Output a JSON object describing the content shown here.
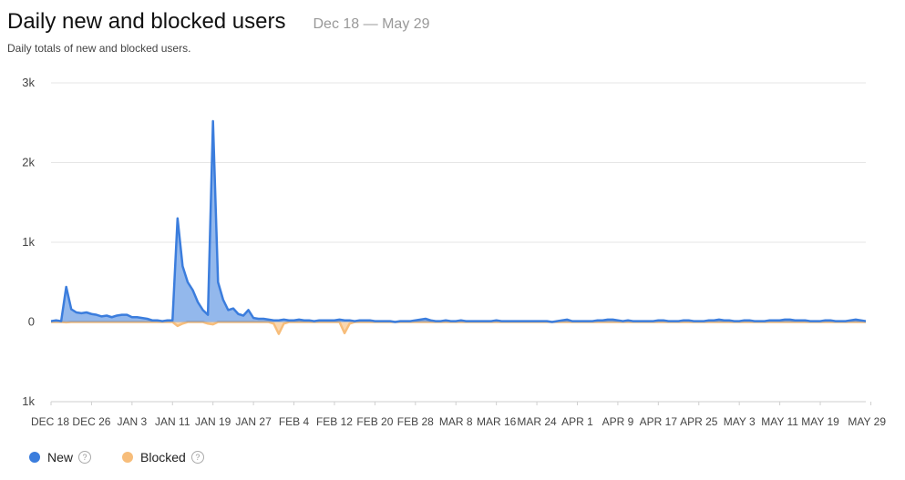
{
  "header": {
    "title": "Daily new and blocked users",
    "date_range": "Dec 18 — May 29",
    "subtitle": "Daily totals of new and blocked users."
  },
  "legend": [
    {
      "label": "New",
      "color": "#3b7ddd",
      "help_icon": "question-circle-icon",
      "help_glyph": "?"
    },
    {
      "label": "Blocked",
      "color": "#f7bd7a",
      "help_icon": "question-circle-icon",
      "help_glyph": "?"
    }
  ],
  "chart_data": {
    "type": "area",
    "y_ticks": [
      {
        "value": 3000,
        "label": "3k"
      },
      {
        "value": 2000,
        "label": "2k"
      },
      {
        "value": 1000,
        "label": "1k"
      },
      {
        "value": 0,
        "label": "0"
      },
      {
        "value": -1000,
        "label": "1k"
      }
    ],
    "ylim": [
      -1000,
      3000
    ],
    "x_ticks": [
      {
        "day": 0,
        "label": "DEC 18"
      },
      {
        "day": 8,
        "label": "DEC 26"
      },
      {
        "day": 16,
        "label": "JAN 3"
      },
      {
        "day": 24,
        "label": "JAN 11"
      },
      {
        "day": 32,
        "label": "JAN 19"
      },
      {
        "day": 40,
        "label": "JAN 27"
      },
      {
        "day": 48,
        "label": "FEB 4"
      },
      {
        "day": 56,
        "label": "FEB 12"
      },
      {
        "day": 64,
        "label": "FEB 20"
      },
      {
        "day": 72,
        "label": "FEB 28"
      },
      {
        "day": 80,
        "label": "MAR 8"
      },
      {
        "day": 88,
        "label": "MAR 16"
      },
      {
        "day": 96,
        "label": "MAR 24"
      },
      {
        "day": 104,
        "label": "APR 1"
      },
      {
        "day": 112,
        "label": "APR 9"
      },
      {
        "day": 120,
        "label": "APR 17"
      },
      {
        "day": 128,
        "label": "APR 25"
      },
      {
        "day": 136,
        "label": "MAY 3"
      },
      {
        "day": 144,
        "label": "MAY 11"
      },
      {
        "day": 152,
        "label": "MAY 19"
      },
      {
        "day": 162,
        "label": "MAY 29"
      }
    ],
    "grid": true,
    "legend_position": "bottom-left",
    "series": [
      {
        "name": "New",
        "color": "#3b7ddd",
        "values": [
          10,
          20,
          10,
          440,
          160,
          120,
          110,
          120,
          100,
          90,
          70,
          80,
          60,
          80,
          90,
          90,
          60,
          60,
          50,
          40,
          20,
          20,
          10,
          20,
          20,
          1300,
          700,
          500,
          400,
          250,
          150,
          90,
          2520,
          500,
          280,
          150,
          170,
          100,
          80,
          150,
          50,
          40,
          40,
          30,
          20,
          20,
          30,
          20,
          20,
          30,
          20,
          20,
          10,
          20,
          20,
          20,
          20,
          30,
          20,
          20,
          10,
          20,
          20,
          20,
          10,
          10,
          10,
          10,
          0,
          10,
          10,
          10,
          20,
          30,
          40,
          20,
          10,
          10,
          20,
          10,
          10,
          20,
          10,
          10,
          10,
          10,
          10,
          10,
          20,
          10,
          10,
          10,
          10,
          10,
          10,
          10,
          10,
          10,
          10,
          0,
          10,
          20,
          30,
          10,
          10,
          10,
          10,
          10,
          20,
          20,
          30,
          30,
          20,
          10,
          20,
          10,
          10,
          10,
          10,
          10,
          20,
          20,
          10,
          10,
          10,
          20,
          20,
          10,
          10,
          10,
          20,
          20,
          30,
          20,
          20,
          10,
          10,
          20,
          20,
          10,
          10,
          10,
          20,
          20,
          20,
          30,
          30,
          20,
          20,
          20,
          10,
          10,
          10,
          20,
          20,
          10,
          10,
          10,
          20,
          30,
          20,
          10
        ]
      },
      {
        "name": "Blocked",
        "color": "#f7bd7a",
        "values": [
          0,
          0,
          0,
          -5,
          0,
          0,
          0,
          0,
          0,
          0,
          0,
          0,
          0,
          0,
          0,
          0,
          0,
          0,
          0,
          0,
          0,
          0,
          0,
          0,
          0,
          -50,
          -20,
          0,
          0,
          0,
          0,
          -20,
          -30,
          0,
          0,
          0,
          0,
          0,
          0,
          0,
          0,
          0,
          0,
          0,
          -20,
          -150,
          -20,
          0,
          0,
          0,
          0,
          0,
          0,
          0,
          0,
          0,
          0,
          0,
          -140,
          -20,
          0,
          0,
          0,
          0,
          0,
          0,
          0,
          0,
          0,
          0,
          0,
          0,
          0,
          0,
          0,
          0,
          0,
          0,
          0,
          0,
          0,
          0,
          0,
          0,
          0,
          0,
          0,
          0,
          0,
          0,
          0,
          0,
          0,
          0,
          0,
          0,
          0,
          0,
          0,
          0,
          0,
          0,
          0,
          0,
          0,
          0,
          0,
          0,
          0,
          0,
          0,
          0,
          0,
          0,
          0,
          0,
          0,
          0,
          0,
          0,
          0,
          0,
          0,
          0,
          0,
          0,
          0,
          0,
          0,
          0,
          0,
          0,
          0,
          0,
          0,
          0,
          0,
          0,
          0,
          0,
          0,
          0,
          0,
          0,
          0,
          0,
          0,
          0,
          0,
          0,
          0,
          0,
          0,
          0,
          0,
          0,
          0,
          0,
          0,
          0,
          0,
          0
        ]
      }
    ]
  }
}
